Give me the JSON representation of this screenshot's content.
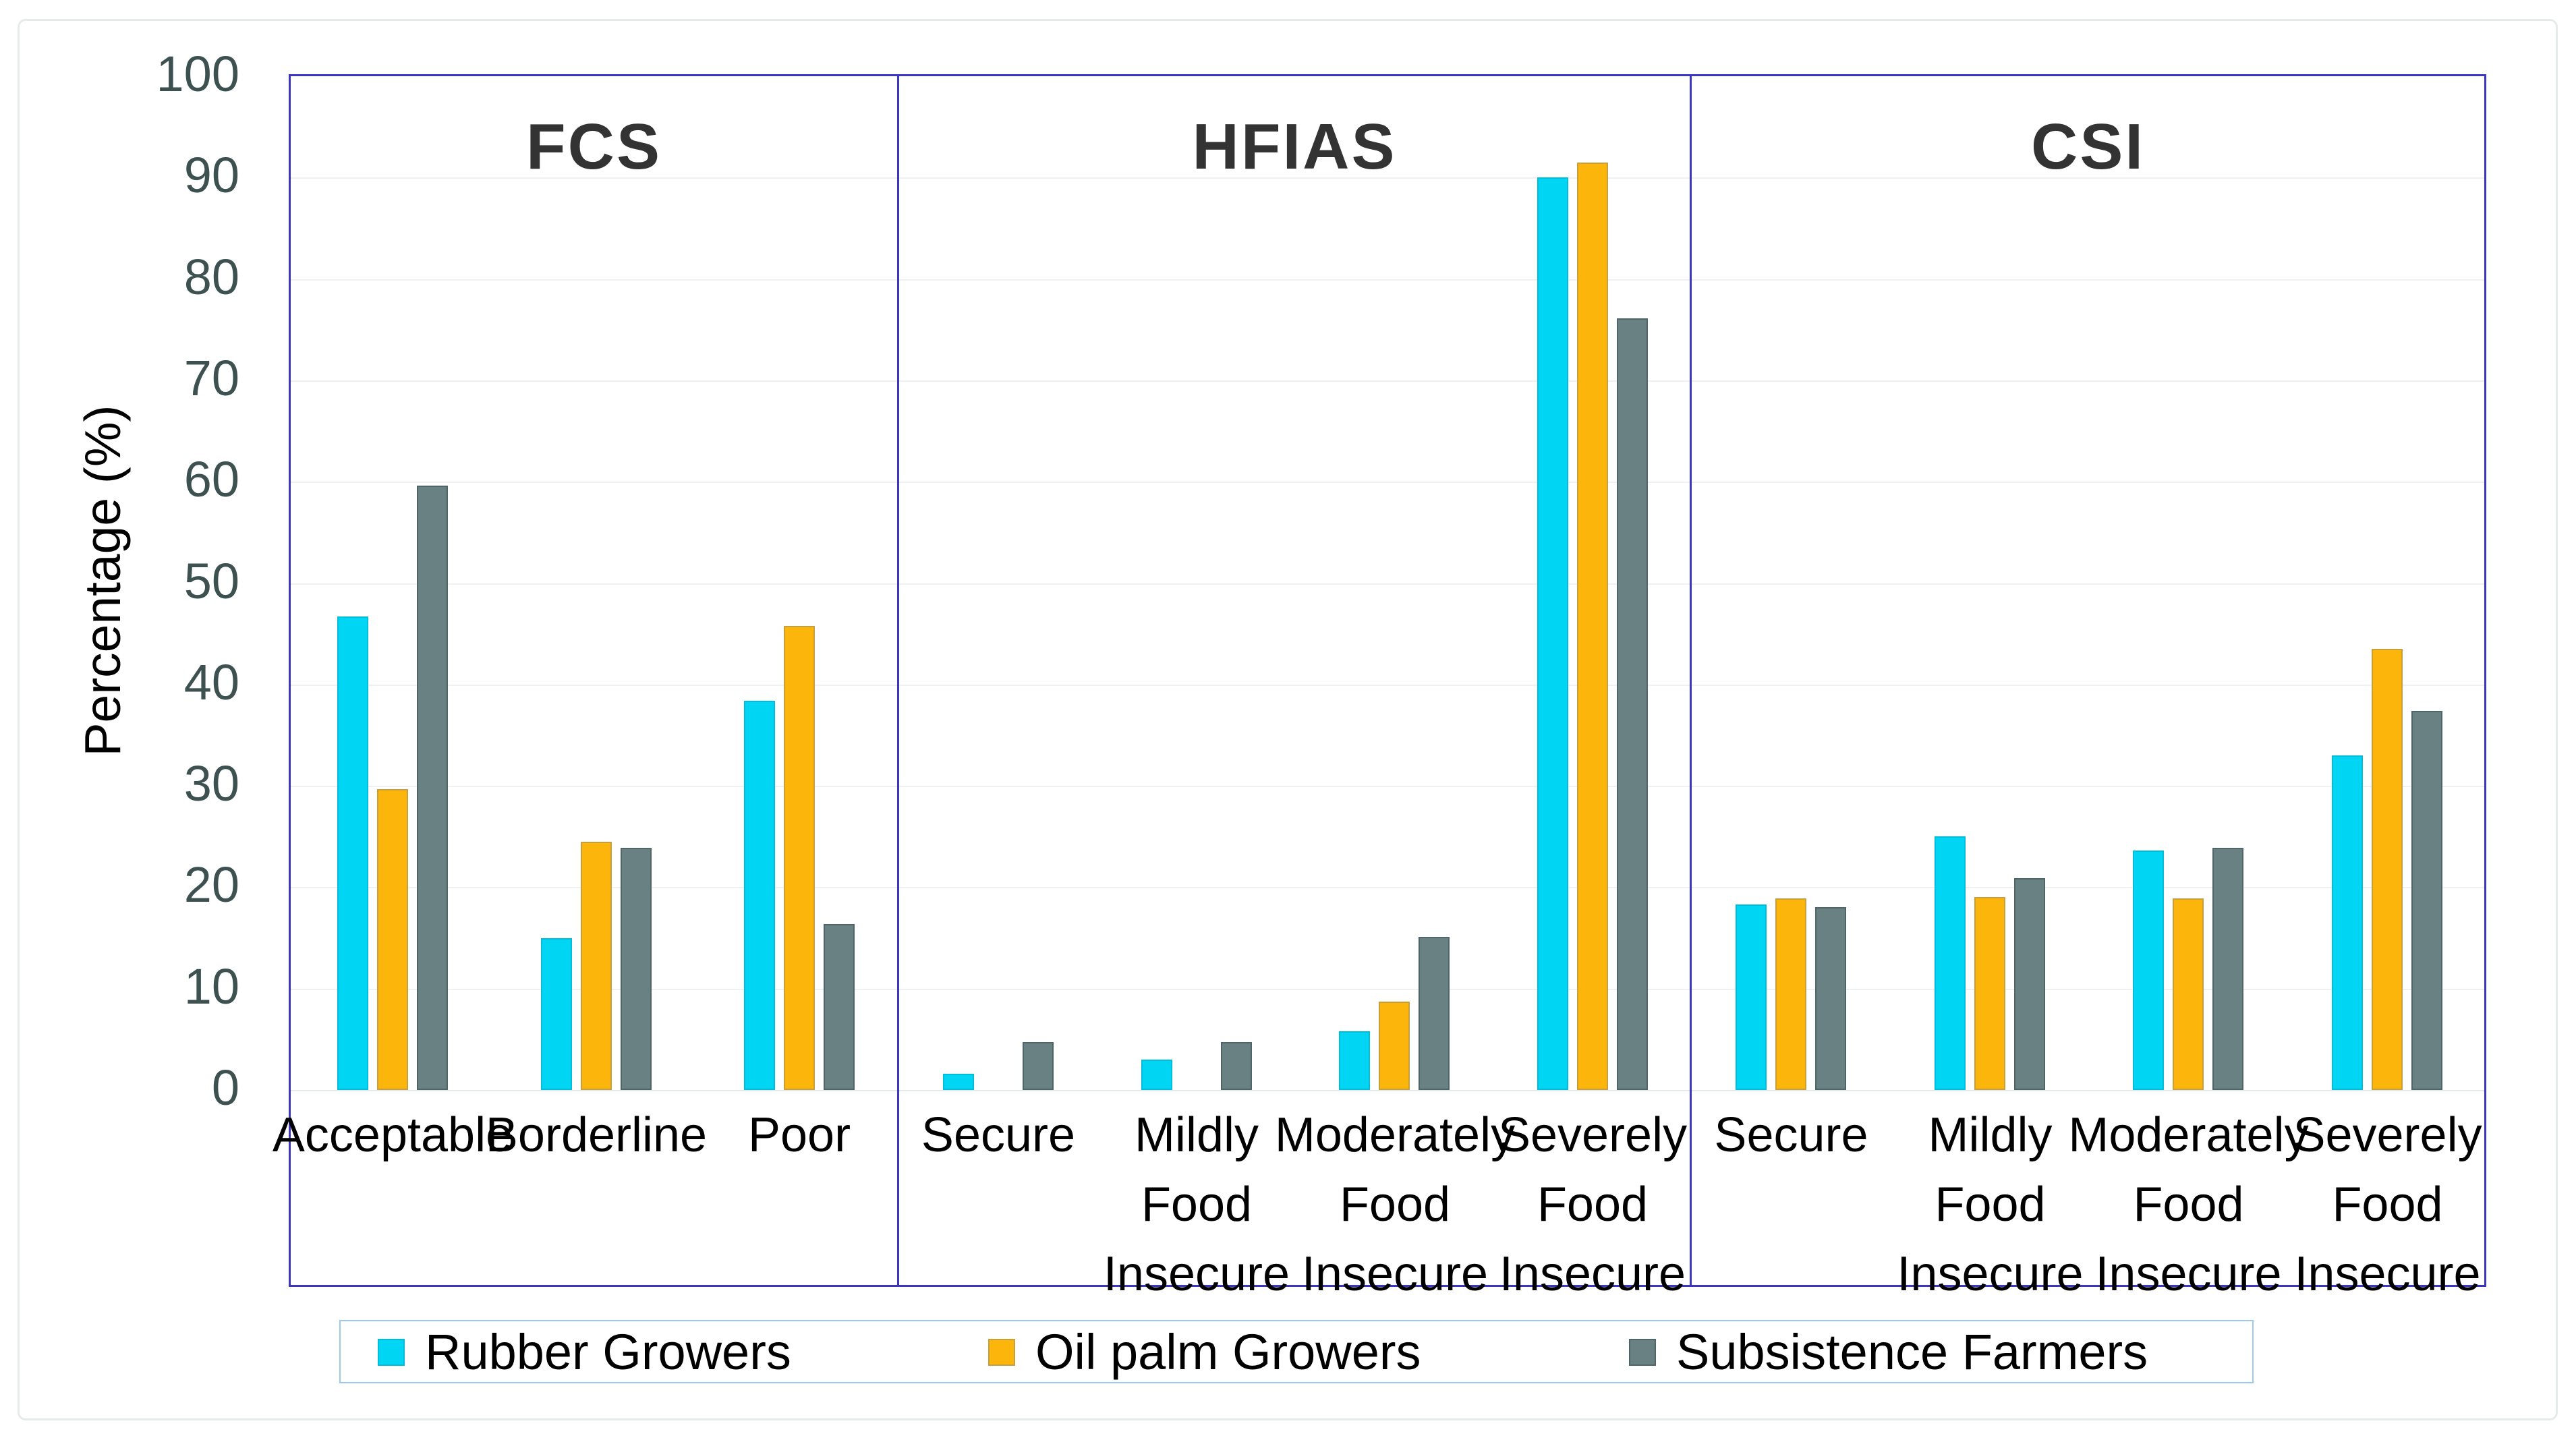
{
  "chart_data": {
    "type": "bar",
    "title": "",
    "ylabel": "Percentage (%)",
    "ylim": [
      0,
      100
    ],
    "ytick_step": 10,
    "grid": true,
    "legend_position": "bottom-center",
    "series": [
      {
        "name": "Rubber Growers",
        "color": "#00D5F4",
        "edge": "rgba(0,160,190,0.45)"
      },
      {
        "name": "Oil palm Growers",
        "color": "#FCB50A",
        "edge": "rgba(150,135,110,0.5)"
      },
      {
        "name": "Subsistence Farmers",
        "color": "#6A8183",
        "edge": "rgba(75,99,103,0.9)"
      }
    ],
    "panels": [
      {
        "title": "FCS",
        "categories": [
          [
            "Acceptable"
          ],
          [
            "Borderline"
          ],
          [
            "Poor"
          ]
        ],
        "series": [
          {
            "name": "Rubber Growers",
            "values": [
              46.7,
              15.0,
              38.4
            ]
          },
          {
            "name": "Oil palm Growers",
            "values": [
              29.7,
              24.5,
              45.8
            ]
          },
          {
            "name": "Subsistence Farmers",
            "values": [
              59.6,
              23.9,
              16.4
            ]
          }
        ]
      },
      {
        "title": "HFIAS",
        "categories": [
          [
            "Secure"
          ],
          [
            "Mildly",
            "Food",
            "Insecure"
          ],
          [
            "Moderately",
            "Food",
            "Insecure"
          ],
          [
            "Severely",
            "Food",
            "Insecure"
          ]
        ],
        "series": [
          {
            "name": "Rubber Growers",
            "values": [
              1.6,
              3.0,
              5.8,
              90.0
            ]
          },
          {
            "name": "Oil palm Growers",
            "values": [
              0,
              0,
              8.7,
              91.5
            ]
          },
          {
            "name": "Subsistence Farmers",
            "values": [
              4.7,
              4.7,
              15.1,
              76.1
            ]
          }
        ]
      },
      {
        "title": "CSI",
        "categories": [
          [
            "Secure"
          ],
          [
            "Mildly",
            "Food",
            "Insecure"
          ],
          [
            "Moderately",
            "Food",
            "Insecure"
          ],
          [
            "Severely",
            "Food",
            "Insecure"
          ]
        ],
        "series": [
          {
            "name": "Rubber Growers",
            "values": [
              18.3,
              25.0,
              23.6,
              33.0
            ]
          },
          {
            "name": "Oil palm Growers",
            "values": [
              18.9,
              19.0,
              18.9,
              43.5
            ]
          },
          {
            "name": "Subsistence Farmers",
            "values": [
              18.0,
              20.9,
              23.9,
              37.4
            ]
          }
        ]
      }
    ],
    "yticks": [
      0,
      10,
      20,
      30,
      40,
      50,
      60,
      70,
      80,
      90,
      100
    ]
  },
  "colors": {
    "panel_border": "#3B36BF",
    "gridline": "#EEF1F1",
    "baseline": "#E3E8E8",
    "tick_text": "#3D5151",
    "title_text": "#333333",
    "legend_border": "#9CC9F0",
    "figure_border": "#E5EBEB"
  }
}
